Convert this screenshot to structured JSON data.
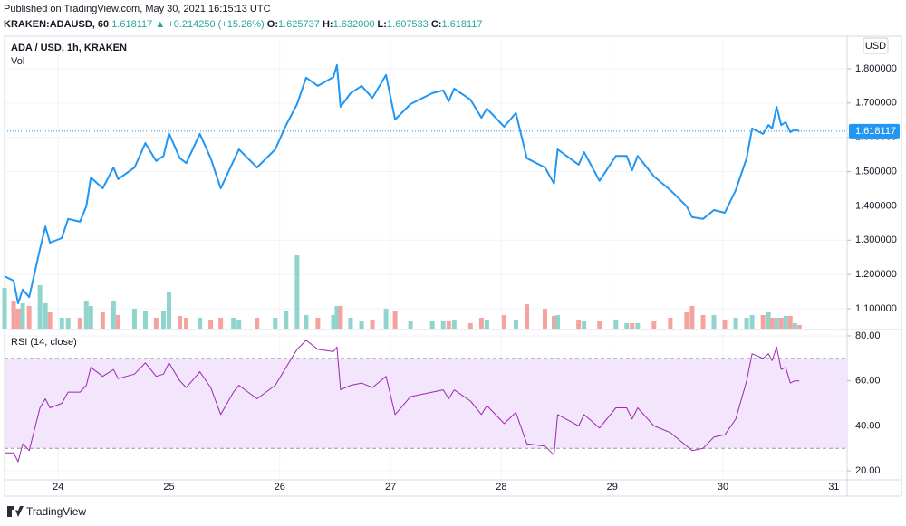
{
  "header": {
    "published": "Published on TradingView.com, May 30, 2021 16:15:13 UTC",
    "symbol": "KRAKEN:ADAUSD, 60",
    "last": "1.618117",
    "change": "▲ +0.214250 (+15.26%)",
    "ohlc": [
      {
        "label": "O:",
        "value": "1.625737"
      },
      {
        "label": "H:",
        "value": "1.632000"
      },
      {
        "label": "L:",
        "value": "1.607533"
      },
      {
        "label": "C:",
        "value": "1.618117"
      }
    ]
  },
  "footer": {
    "brand": "TradingView"
  },
  "chart_data": [
    {
      "type": "line",
      "currency": "USD",
      "x": [
        23.516,
        23.598,
        23.639,
        23.68,
        23.738,
        23.836,
        23.885,
        23.926,
        24.033,
        24.09,
        24.197,
        24.254,
        24.295,
        24.402,
        24.5,
        24.541,
        24.689,
        24.787,
        24.885,
        24.951,
        25.0,
        25.098,
        25.156,
        25.279,
        25.377,
        25.467,
        25.582,
        25.631,
        25.795,
        25.959,
        26.057,
        26.156,
        26.238,
        26.344,
        26.484,
        26.516,
        26.549,
        26.639,
        26.738,
        26.836,
        26.959,
        27.041,
        27.18,
        27.377,
        27.475,
        27.525,
        27.574,
        27.721,
        27.82,
        27.869,
        28.025,
        28.131,
        28.23,
        28.393,
        28.475,
        28.508,
        28.697,
        28.746,
        28.885,
        29.033,
        29.131,
        29.18,
        29.23,
        29.377,
        29.525,
        29.672,
        29.721,
        29.82,
        29.918,
        30.016,
        30.115,
        30.213,
        30.262,
        30.361,
        30.41,
        30.443,
        30.484,
        30.525,
        30.566,
        30.607,
        30.648,
        30.689
      ],
      "series": [
        {
          "name": "ADA / USD, 1h, KRAKEN",
          "color": "#2196f3",
          "values": [
            1.195,
            1.182,
            1.116,
            1.156,
            1.134,
            1.274,
            1.34,
            1.293,
            1.306,
            1.362,
            1.354,
            1.399,
            1.483,
            1.451,
            1.512,
            1.478,
            1.512,
            1.583,
            1.531,
            1.546,
            1.612,
            1.539,
            1.525,
            1.61,
            1.539,
            1.451,
            1.531,
            1.565,
            1.512,
            1.565,
            1.636,
            1.697,
            1.774,
            1.75,
            1.776,
            1.811,
            1.689,
            1.729,
            1.75,
            1.715,
            1.782,
            1.652,
            1.697,
            1.729,
            1.737,
            1.705,
            1.742,
            1.71,
            1.657,
            1.684,
            1.631,
            1.671,
            1.539,
            1.512,
            1.465,
            1.565,
            1.52,
            1.557,
            1.473,
            1.546,
            1.546,
            1.504,
            1.546,
            1.486,
            1.446,
            1.399,
            1.367,
            1.362,
            1.388,
            1.38,
            1.446,
            1.539,
            1.626,
            1.61,
            1.636,
            1.626,
            1.689,
            1.636,
            1.644,
            1.615,
            1.623,
            1.618
          ]
        },
        {
          "name": "Vol",
          "type": "bar",
          "up_color": "#8fd4cd",
          "down_color": "#f5a3a1",
          "values": [
            45,
            30,
            22,
            28,
            25,
            48,
            28,
            18,
            12,
            12,
            12,
            30,
            25,
            18,
            30,
            15,
            22,
            20,
            12,
            20,
            40,
            14,
            12,
            12,
            10,
            12,
            12,
            10,
            12,
            12,
            20,
            81,
            15,
            12,
            15,
            25,
            25,
            12,
            8,
            10,
            22,
            20,
            8,
            8,
            8,
            8,
            10,
            6,
            12,
            10,
            15,
            10,
            27,
            22,
            14,
            15,
            10,
            8,
            8,
            10,
            6,
            6,
            6,
            8,
            12,
            18,
            25,
            15,
            15,
            10,
            12,
            12,
            15,
            15,
            18,
            12,
            12,
            12,
            14,
            14,
            6,
            4
          ]
        }
      ],
      "xlim": [
        23.516,
        31.12
      ],
      "xticks": [
        24,
        25,
        26,
        27,
        28,
        29,
        30,
        31
      ],
      "ylim": [
        1.042,
        1.895
      ],
      "yticks": [
        {
          "value": 1.1,
          "label": "1.100000"
        },
        {
          "value": 1.2,
          "label": "1.200000"
        },
        {
          "value": 1.3,
          "label": "1.300000"
        },
        {
          "value": 1.4,
          "label": "1.400000"
        },
        {
          "value": 1.5,
          "label": "1.500000"
        },
        {
          "value": 1.6,
          "label": "1.600000"
        },
        {
          "value": 1.7,
          "label": "1.700000"
        },
        {
          "value": 1.8,
          "label": "1.800000"
        }
      ],
      "last_price": 1.618117,
      "grid": true
    },
    {
      "type": "line",
      "series": [
        {
          "name": "RSI (14, close)",
          "color": "#9c27b0",
          "values": [
            28,
            28,
            24,
            32,
            29,
            48,
            52,
            48,
            50,
            55,
            55,
            58,
            66,
            62,
            65,
            61,
            63,
            68,
            62,
            63,
            68,
            60,
            57,
            64,
            57,
            45,
            55,
            58,
            52,
            58,
            66,
            74,
            78,
            74,
            73,
            75,
            56,
            58,
            59,
            57,
            62,
            45,
            53,
            55,
            56,
            52,
            56,
            51,
            45,
            49,
            41,
            46,
            32,
            31,
            27,
            45,
            40,
            45,
            39,
            48,
            48,
            43,
            48,
            40,
            37,
            31,
            29,
            30,
            35,
            36,
            43,
            60,
            72,
            70,
            72,
            69,
            75,
            65,
            66,
            59,
            60,
            60
          ]
        }
      ],
      "ylim": [
        16,
        82.4
      ],
      "yticks": [
        {
          "value": 20,
          "label": "20.00"
        },
        {
          "value": 40,
          "label": "40.00"
        },
        {
          "value": 60,
          "label": "60.00"
        },
        {
          "value": 80,
          "label": "80.00"
        }
      ],
      "band": [
        30,
        70
      ],
      "band_color": "#f3e5fb",
      "grid": true
    }
  ]
}
